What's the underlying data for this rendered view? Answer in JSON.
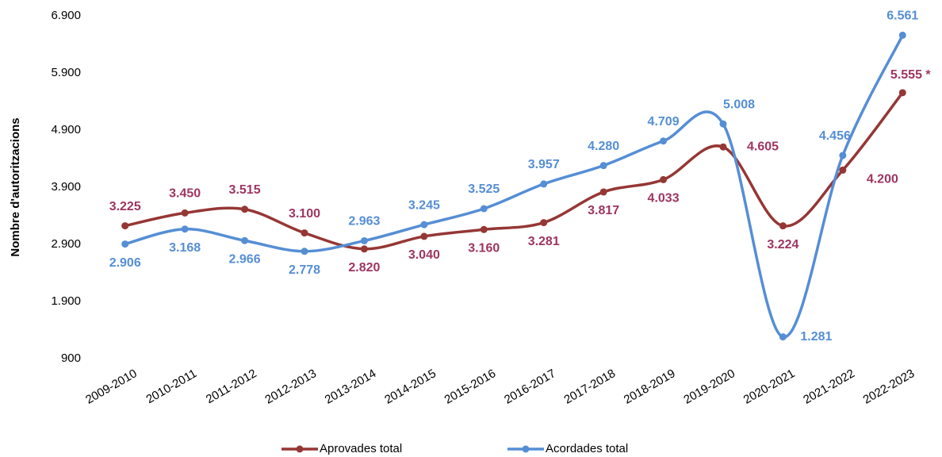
{
  "chart_data": {
    "type": "line",
    "ylabel": "Nombre d'autoritzacions",
    "categories": [
      "2009-2010",
      "2010-2011",
      "2011-2012",
      "2012-2013",
      "2013-2014",
      "2014-2015",
      "2015-2016",
      "2016-2017",
      "2017-2018",
      "2018-2019",
      "2019-2020",
      "2020-2021",
      "2021-2022",
      "2022-2023"
    ],
    "series": [
      {
        "name": "Aprovades total",
        "color": "#953735",
        "label_color": "#9e3560",
        "values": [
          3225,
          3450,
          3515,
          3100,
          2820,
          3040,
          3160,
          3281,
          3817,
          4033,
          4605,
          3224,
          4200,
          5555
        ],
        "value_labels": [
          "3.225",
          "3.450",
          "3.515",
          "3.100",
          "2.820",
          "3.040",
          "3.160",
          "3.281",
          "3.817",
          "4.033",
          "4.605",
          "3.224",
          "4.200",
          "5.555 *"
        ]
      },
      {
        "name": "Acordades total",
        "color": "#558ed5",
        "label_color": "#558ed5",
        "values": [
          2906,
          3168,
          2966,
          2778,
          2963,
          3245,
          3525,
          3957,
          4280,
          4709,
          5008,
          1281,
          4456,
          6561
        ],
        "value_labels": [
          "2.906",
          "3.168",
          "2.966",
          "2.778",
          "2.963",
          "3.245",
          "3.525",
          "3.957",
          "4.280",
          "4.709",
          "5.008",
          "1.281",
          "4.456",
          "6.561"
        ]
      }
    ],
    "ylim": [
      900,
      6900
    ],
    "yticks": [
      {
        "value": 900,
        "label": "900"
      },
      {
        "value": 1900,
        "label": "1.900"
      },
      {
        "value": 2900,
        "label": "2.900"
      },
      {
        "value": 3900,
        "label": "3.900"
      },
      {
        "value": 4900,
        "label": "4.900"
      },
      {
        "value": 5900,
        "label": "5.900"
      },
      {
        "value": 6900,
        "label": "6.900"
      }
    ],
    "grid": false,
    "legend": "bottom"
  }
}
